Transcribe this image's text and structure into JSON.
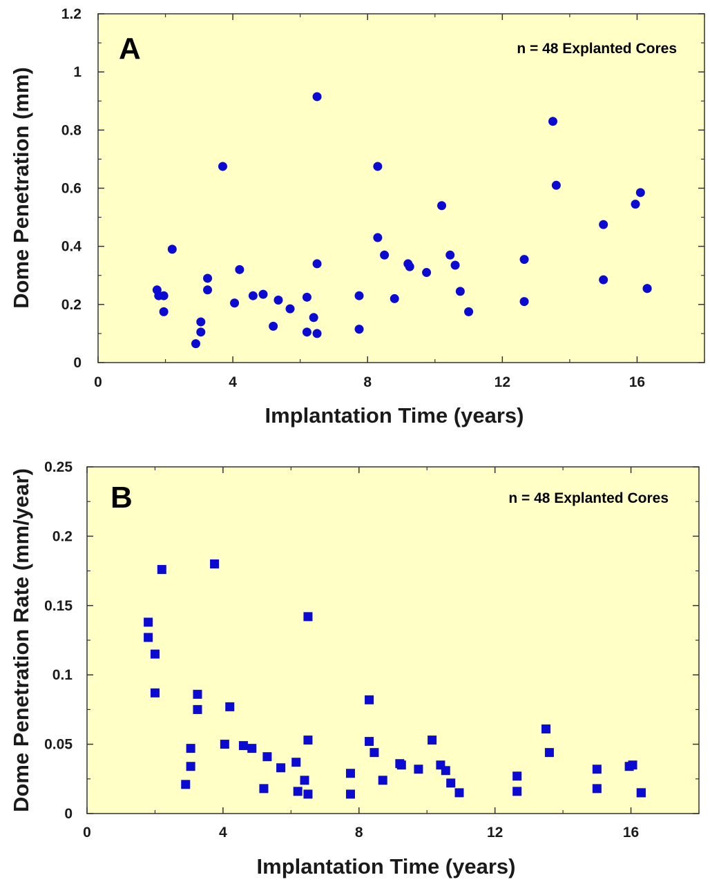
{
  "chart_data": [
    {
      "type": "scatter",
      "panel": "A",
      "annotation": "n = 48 Explanted Cores",
      "xlabel": "Implantation Time (years)",
      "ylabel": "Dome Penetration (mm)",
      "xlim": [
        0,
        18
      ],
      "ylim": [
        0,
        1.2
      ],
      "xticks": [
        0,
        4,
        8,
        12,
        16
      ],
      "yticks": [
        "0",
        "0.2",
        "0.4",
        "0.6",
        "0.8",
        "1",
        "1.2"
      ],
      "marker": "circle",
      "background": "#ffffc6",
      "marker_color": "#0a0ad2",
      "x": [
        1.75,
        1.8,
        1.95,
        1.95,
        2.2,
        2.9,
        3.05,
        3.05,
        3.25,
        3.25,
        3.7,
        4.05,
        4.2,
        4.6,
        4.9,
        5.2,
        5.35,
        5.7,
        6.2,
        6.2,
        6.4,
        6.5,
        6.5,
        6.5,
        7.75,
        7.75,
        8.3,
        8.3,
        8.5,
        8.8,
        9.2,
        9.25,
        9.75,
        10.2,
        10.45,
        10.6,
        10.75,
        11.0,
        12.65,
        12.65,
        13.5,
        13.6,
        15.0,
        15.0,
        15.95,
        16.1,
        16.3,
        16.3
      ],
      "y": [
        0.25,
        0.23,
        0.23,
        0.175,
        0.39,
        0.065,
        0.14,
        0.105,
        0.29,
        0.25,
        0.675,
        0.205,
        0.32,
        0.23,
        0.235,
        0.125,
        0.215,
        0.185,
        0.225,
        0.105,
        0.155,
        0.915,
        0.34,
        0.1,
        0.23,
        0.115,
        0.675,
        0.43,
        0.37,
        0.22,
        0.34,
        0.33,
        0.31,
        0.54,
        0.37,
        0.335,
        0.245,
        0.175,
        0.355,
        0.21,
        0.83,
        0.61,
        0.475,
        0.285,
        0.545,
        0.585,
        0.255,
        0.255
      ]
    },
    {
      "type": "scatter",
      "panel": "B",
      "annotation": "n = 48 Explanted Cores",
      "xlabel": "Implantation Time (years)",
      "ylabel": "Dome Penetration Rate (mm/year)",
      "xlim": [
        0,
        18
      ],
      "ylim": [
        0,
        0.25
      ],
      "xticks": [
        0,
        4,
        8,
        12,
        16
      ],
      "yticks": [
        "0",
        "0.05",
        "0.1",
        "0.15",
        "0.2",
        "0.25"
      ],
      "marker": "square",
      "background": "#ffffc6",
      "marker_color": "#0a0ad2",
      "x": [
        1.8,
        1.8,
        2.0,
        2.0,
        2.2,
        2.9,
        3.05,
        3.05,
        3.25,
        3.25,
        3.75,
        4.05,
        4.2,
        4.6,
        4.85,
        5.2,
        5.3,
        5.7,
        6.15,
        6.2,
        6.4,
        6.5,
        6.5,
        6.5,
        7.75,
        7.75,
        8.3,
        8.3,
        8.45,
        8.7,
        9.2,
        9.25,
        9.75,
        10.15,
        10.4,
        10.55,
        10.7,
        10.95,
        12.65,
        12.65,
        13.5,
        13.6,
        15.0,
        15.0,
        15.95,
        16.05,
        16.3,
        16.3
      ],
      "y": [
        0.138,
        0.127,
        0.115,
        0.087,
        0.176,
        0.021,
        0.047,
        0.034,
        0.086,
        0.075,
        0.18,
        0.05,
        0.077,
        0.049,
        0.047,
        0.018,
        0.041,
        0.033,
        0.037,
        0.016,
        0.024,
        0.142,
        0.053,
        0.014,
        0.029,
        0.014,
        0.082,
        0.052,
        0.044,
        0.024,
        0.036,
        0.035,
        0.032,
        0.053,
        0.035,
        0.031,
        0.022,
        0.015,
        0.027,
        0.016,
        0.061,
        0.044,
        0.032,
        0.018,
        0.034,
        0.035,
        0.015,
        0.015
      ]
    }
  ]
}
